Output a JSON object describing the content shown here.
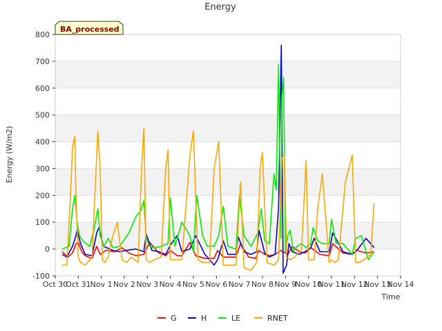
{
  "chart_data": {
    "type": "line",
    "title": "Energy",
    "badge": "BA_processed",
    "xlabel": "Time",
    "ylabel": "Energy (W/m2)",
    "ylim": [
      -100,
      800
    ],
    "yticks": [
      -100,
      0,
      100,
      200,
      300,
      400,
      500,
      600,
      700,
      800
    ],
    "xlim": [
      0,
      15
    ],
    "x_unit": "days since Oct 30",
    "xtick_labels": [
      "Oct 30",
      "Oct 31",
      "Nov 1",
      "Nov 2",
      "Nov 3",
      "Nov 4",
      "Nov 5",
      "Nov 6",
      "Nov 7",
      "Nov 8",
      "Nov 9",
      "Nov 10",
      "Nov 11",
      "Nov 12",
      "Nov 13",
      "Nov 14"
    ],
    "grid": true,
    "legend_position": "bottom-center",
    "series": [
      {
        "name": "G",
        "color": "#ff0000",
        "x": [
          0.3,
          0.55,
          0.75,
          0.9,
          1.0,
          1.15,
          1.3,
          1.6,
          1.8,
          1.95,
          2.2,
          2.6,
          2.9,
          3.2,
          3.5,
          3.85,
          4.1,
          4.5,
          4.8,
          5.0,
          5.3,
          5.5,
          5.85,
          6.1,
          6.5,
          6.9,
          7.05,
          7.3,
          7.5,
          7.85,
          8.05,
          8.4,
          8.7,
          8.85,
          9.1,
          9.3,
          9.55,
          9.8,
          10.1,
          10.3,
          10.6,
          10.85,
          11.1,
          11.5,
          11.9,
          12.05,
          12.5,
          12.9,
          13.1,
          13.5,
          13.85
        ],
        "y": [
          -10,
          -30,
          -15,
          20,
          25,
          -10,
          -25,
          -35,
          10,
          -20,
          -5,
          -10,
          5,
          -15,
          -25,
          -20,
          25,
          -15,
          -25,
          -5,
          -25,
          -25,
          25,
          -25,
          -35,
          -35,
          -5,
          -30,
          -30,
          -30,
          20,
          -30,
          -35,
          -5,
          -20,
          -25,
          -20,
          -5,
          -20,
          10,
          -10,
          -15,
          5,
          -20,
          -25,
          20,
          -15,
          -20,
          -5,
          -15,
          -10
        ]
      },
      {
        "name": "H",
        "color": "#0000cc",
        "x": [
          0.3,
          0.5,
          0.75,
          0.9,
          0.95,
          1.1,
          1.3,
          1.6,
          1.8,
          1.9,
          2.1,
          2.5,
          2.8,
          3.1,
          3.5,
          3.85,
          3.95,
          4.2,
          4.5,
          4.8,
          5.0,
          5.3,
          5.5,
          5.85,
          6.1,
          6.5,
          6.9,
          7.05,
          7.3,
          7.5,
          7.85,
          7.95,
          8.2,
          8.5,
          8.75,
          8.85,
          9.1,
          9.3,
          9.55,
          9.7,
          9.82,
          9.9,
          10.05,
          10.15,
          10.3,
          10.6,
          10.85,
          11.1,
          11.25,
          11.5,
          11.9,
          12.05,
          12.5,
          12.9,
          13.15,
          13.5,
          13.85
        ],
        "y": [
          -20,
          -30,
          10,
          50,
          70,
          20,
          -20,
          -25,
          60,
          80,
          10,
          -5,
          -10,
          -5,
          0,
          -10,
          55,
          -5,
          -10,
          -20,
          15,
          50,
          -10,
          0,
          50,
          -20,
          -60,
          -40,
          30,
          -20,
          -20,
          45,
          -10,
          -20,
          -10,
          70,
          -15,
          -30,
          -20,
          150,
          760,
          -90,
          -60,
          20,
          -10,
          -20,
          -10,
          5,
          40,
          -10,
          -10,
          60,
          -10,
          -20,
          0,
          40,
          5
        ]
      },
      {
        "name": "LE",
        "color": "#00ee00",
        "x": [
          0.3,
          0.6,
          0.75,
          0.85,
          0.95,
          1.05,
          1.2,
          1.5,
          1.7,
          1.85,
          1.95,
          2.1,
          2.3,
          2.5,
          2.8,
          3.2,
          3.5,
          3.7,
          3.85,
          3.95,
          4.1,
          4.3,
          4.6,
          4.9,
          5.0,
          5.2,
          5.5,
          5.85,
          6.0,
          6.15,
          6.4,
          6.6,
          6.9,
          7.1,
          7.3,
          7.5,
          7.85,
          8.0,
          8.2,
          8.5,
          8.8,
          8.95,
          9.1,
          9.3,
          9.5,
          9.6,
          9.7,
          9.8,
          9.85,
          9.92,
          10.0,
          10.1,
          10.2,
          10.35,
          10.5,
          10.7,
          10.9,
          11.1,
          11.2,
          11.4,
          11.6,
          11.9,
          12.0,
          12.2,
          12.5,
          12.9,
          13.05,
          13.3,
          13.6,
          13.85
        ],
        "y": [
          0,
          10,
          150,
          200,
          100,
          50,
          30,
          10,
          80,
          150,
          50,
          10,
          40,
          5,
          10,
          60,
          120,
          140,
          180,
          40,
          10,
          5,
          10,
          20,
          190,
          10,
          100,
          50,
          -10,
          200,
          50,
          10,
          10,
          50,
          160,
          10,
          0,
          200,
          50,
          10,
          60,
          150,
          30,
          20,
          280,
          220,
          690,
          40,
          570,
          640,
          -10,
          50,
          70,
          -10,
          10,
          20,
          5,
          20,
          80,
          30,
          20,
          20,
          110,
          20,
          20,
          -20,
          40,
          50,
          -40,
          -10
        ]
      },
      {
        "name": "RNET",
        "color": "#ffa500",
        "x": [
          0.3,
          0.5,
          0.65,
          0.75,
          0.85,
          0.9,
          1.0,
          1.1,
          1.3,
          1.6,
          1.85,
          1.95,
          2.05,
          2.15,
          2.3,
          2.5,
          2.7,
          2.9,
          3.1,
          3.3,
          3.6,
          3.75,
          3.85,
          3.95,
          4.1,
          4.3,
          4.6,
          4.8,
          4.9,
          5.0,
          5.2,
          5.5,
          5.85,
          6.0,
          6.2,
          6.4,
          6.7,
          6.9,
          7.1,
          7.3,
          7.5,
          7.85,
          8.05,
          8.2,
          8.5,
          8.75,
          8.9,
          9.0,
          9.2,
          9.5,
          9.7,
          9.85,
          9.95,
          10.05,
          10.2,
          10.4,
          10.7,
          10.9,
          11.0,
          11.1,
          11.25,
          11.4,
          11.6,
          11.9,
          12.0,
          12.15,
          12.3,
          12.6,
          12.9,
          13.05,
          13.2,
          13.4,
          13.7,
          13.85
        ],
        "y": [
          -60,
          -60,
          180,
          380,
          420,
          200,
          -30,
          -50,
          -60,
          -30,
          440,
          300,
          -40,
          -50,
          -30,
          50,
          100,
          -40,
          -50,
          -30,
          -50,
          300,
          450,
          -40,
          -50,
          -40,
          -30,
          300,
          370,
          -40,
          -40,
          -40,
          350,
          440,
          -40,
          -50,
          -50,
          300,
          400,
          -60,
          -60,
          -60,
          250,
          -70,
          -80,
          -50,
          300,
          360,
          -50,
          -60,
          -40,
          340,
          350,
          -30,
          -40,
          -30,
          0,
          330,
          -40,
          -40,
          -40,
          150,
          280,
          -50,
          -40,
          -50,
          -40,
          250,
          350,
          -50,
          -50,
          -40,
          -20,
          170
        ]
      }
    ]
  }
}
